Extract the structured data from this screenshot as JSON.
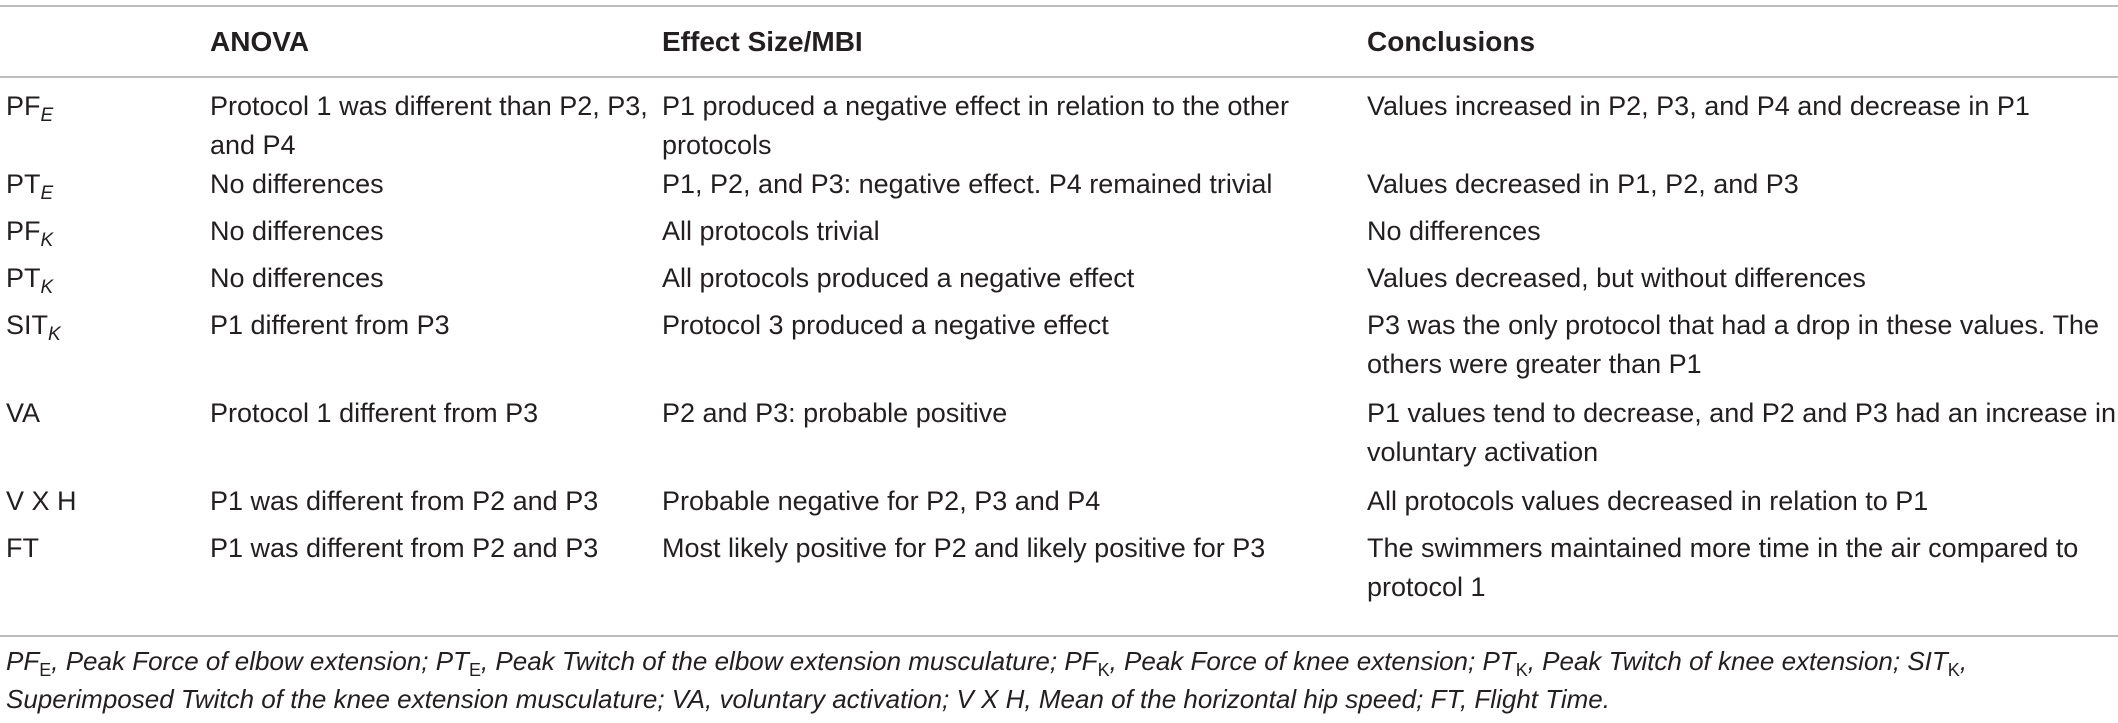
{
  "table": {
    "headers": [
      "",
      "ANOVA",
      "Effect Size/MBI",
      "Conclusions"
    ],
    "rows": [
      {
        "var": "PF",
        "sub": "E",
        "anova": "Protocol 1 was different than P2, P3, and P4",
        "effect": "P1 produced a negative effect in relation to the other protocols",
        "conclusion": "Values increased in P2, P3, and P4 and decrease in P1"
      },
      {
        "var": "PT",
        "sub": "E",
        "anova": "No differences",
        "effect": "P1, P2, and P3: negative effect. P4 remained trivial",
        "conclusion": "Values decreased in P1, P2, and P3"
      },
      {
        "var": "PF",
        "sub": "K",
        "anova": "No differences",
        "effect": "All protocols trivial",
        "conclusion": "No differences"
      },
      {
        "var": "PT",
        "sub": "K",
        "anova": "No differences",
        "effect": "All protocols produced a negative effect",
        "conclusion": "Values decreased, but without differences"
      },
      {
        "var": "SIT",
        "sub": "K",
        "anova": "P1 different from P3",
        "effect": "Protocol 3 produced a negative effect",
        "conclusion": "P3 was the only protocol that had a drop in these values. The others were greater than P1"
      },
      {
        "var": "VA",
        "sub": "",
        "anova": "Protocol 1 different from P3",
        "effect": "P2 and P3: probable positive",
        "conclusion": "P1 values tend to decrease, and P2 and P3 had an increase in voluntary activation"
      },
      {
        "var": "V X H",
        "sub": "",
        "anova": "P1 was different from P2 and P3",
        "effect": "Probable negative for P2, P3 and P4",
        "conclusion": "All protocols values decreased in relation to P1"
      },
      {
        "var": "FT",
        "sub": "",
        "anova": "P1 was different from P2 and P3",
        "effect": "Most likely positive for P2 and likely positive for P3",
        "conclusion": "The swimmers maintained more time in the air compared to protocol 1"
      }
    ]
  },
  "footnote": {
    "items": [
      {
        "abbr": "PF",
        "sub": "E",
        "text": "Peak Force of elbow extension"
      },
      {
        "abbr": "PT",
        "sub": "E",
        "text": "Peak Twitch of the elbow extension musculature"
      },
      {
        "abbr": "PF",
        "sub": "K",
        "text": "Peak Force of knee extension"
      },
      {
        "abbr": "PT",
        "sub": "K",
        "text": "Peak Twitch of knee extension"
      },
      {
        "abbr": "SIT",
        "sub": "K",
        "text": "Superimposed Twitch of the knee extension musculature"
      },
      {
        "abbr": "VA",
        "sub": "",
        "text": "voluntary activation"
      },
      {
        "abbr": "V X H",
        "sub": "",
        "text": "Mean of the horizontal hip speed"
      },
      {
        "abbr": "FT",
        "sub": "",
        "text": "Flight Time"
      }
    ]
  }
}
